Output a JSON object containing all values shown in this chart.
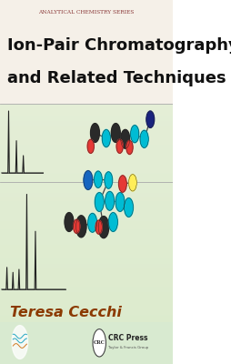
{
  "top_bar_text": "ANALYTICAL CHEMISTRY SERIES",
  "top_bar_text_color": "#8b3a3a",
  "top_bar_bg": "#f5f0e8",
  "title_line1": "Ion-Pair Chromatography",
  "title_line2": "and Related Techniques",
  "title_color": "#111111",
  "bg_color": "#e8f2e0",
  "author_name": "Teresa Cecchi",
  "author_color": "#8b3a00",
  "line_color": "#222222",
  "molecule_colors": {
    "dark_gray": "#2a2a2a",
    "cyan": "#00bcd4",
    "red": "#e53935",
    "blue_dark": "#1a237e",
    "blue_mid": "#1565c0",
    "yellow": "#ffee58"
  }
}
